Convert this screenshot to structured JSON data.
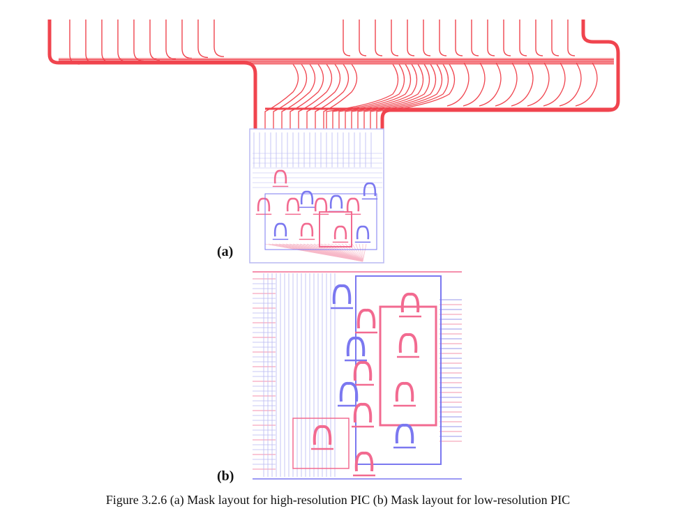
{
  "figure": {
    "panel_a_label": "(a)",
    "panel_b_label": "(b)",
    "caption": "Figure 3.2.6 (a) Mask layout for high-resolution PIC (b) Mask layout for low-resolution PIC"
  },
  "colors": {
    "waveguide_red": "#f0444e",
    "pink": "#f26a90",
    "blue": "#7b78f0",
    "light_blue": "#b8b8f2",
    "light_pink": "#f7b7c7"
  }
}
